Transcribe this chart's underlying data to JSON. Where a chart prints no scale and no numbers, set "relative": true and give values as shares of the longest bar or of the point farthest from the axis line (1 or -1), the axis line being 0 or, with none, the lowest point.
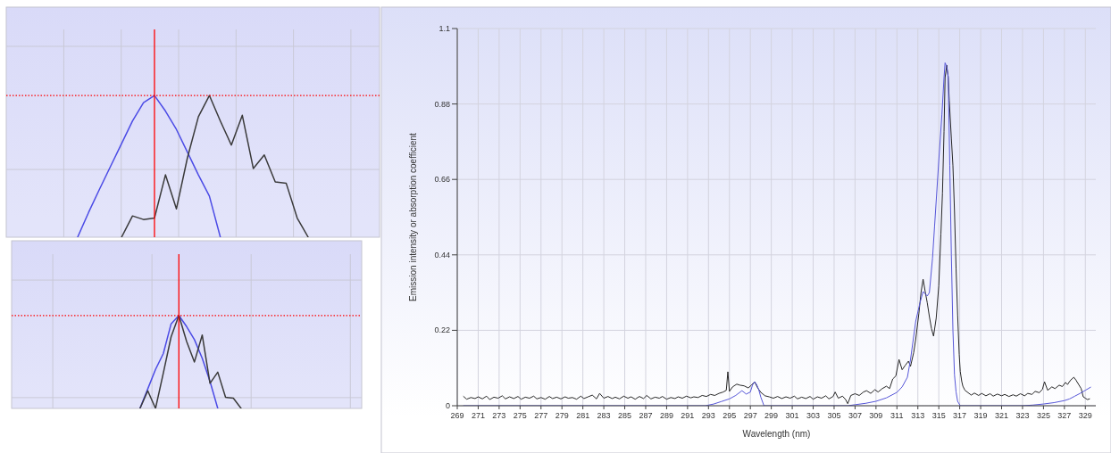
{
  "chart_data": [
    {
      "type": "line",
      "relative": true,
      "grid": true,
      "categories": [
        null,
        null,
        null,
        null,
        null,
        null,
        null,
        null,
        null,
        null,
        null,
        null,
        null,
        null,
        null,
        null,
        null,
        null,
        null,
        null,
        null,
        null,
        null,
        null,
        null,
        null,
        null,
        null,
        null,
        null,
        null,
        null,
        null,
        null
      ],
      "series": [
        {
          "color": "#4b4be6",
          "values": [
            null,
            null,
            null,
            null,
            null,
            null,
            0,
            0.175,
            0.34,
            0.5,
            0.66,
            0.82,
            0.95,
            1,
            0.89,
            0.76,
            0.6,
            0.44,
            0.29,
            0,
            null,
            null,
            null,
            null,
            null,
            null,
            null,
            null,
            null,
            null,
            null,
            null,
            null,
            null
          ]
        },
        {
          "color": "#3a3a3a",
          "values": [
            null,
            null,
            null,
            null,
            null,
            null,
            null,
            null,
            null,
            null,
            0,
            0.15,
            0.125,
            0.135,
            0.44,
            0.2,
            0.56,
            0.85,
            1,
            0.82,
            0.65,
            0.86,
            0.485,
            0.58,
            0.39,
            0.38,
            0.135,
            0,
            null,
            null,
            null,
            null,
            null,
            null
          ]
        }
      ],
      "ref_lines": [
        {
          "axis": "y",
          "value": 1,
          "color": "#ff0000",
          "line_style": "dotted"
        }
      ]
    },
    {
      "type": "line",
      "relative": true,
      "grid": true,
      "categories": [
        null,
        null,
        null,
        null,
        null,
        null,
        null,
        null,
        null,
        null,
        null,
        null,
        null,
        null,
        null,
        null,
        null,
        null,
        null,
        null,
        null,
        null,
        null,
        null,
        null,
        null,
        null,
        null,
        null,
        null,
        null,
        null,
        null,
        null,
        null,
        null,
        null,
        null,
        null,
        null,
        null,
        null,
        null,
        null,
        null
      ],
      "series": [
        {
          "color": "#4b4be6",
          "values": [
            null,
            null,
            null,
            null,
            null,
            null,
            null,
            null,
            null,
            null,
            null,
            null,
            null,
            null,
            null,
            null,
            0,
            0.21,
            0.42,
            0.59,
            0.91,
            1,
            0.88,
            0.74,
            0.54,
            0.29,
            0,
            null,
            null,
            null,
            null,
            null,
            null,
            null,
            null,
            null,
            null,
            null,
            null,
            null,
            null,
            null,
            null,
            null,
            null
          ]
        },
        {
          "color": "#3a3a3a",
          "values": [
            null,
            null,
            null,
            null,
            null,
            null,
            null,
            null,
            null,
            null,
            null,
            null,
            null,
            null,
            null,
            null,
            0,
            0.19,
            0,
            0.38,
            0.77,
            1,
            0.72,
            0.5,
            0.79,
            0.27,
            0.39,
            0.12,
            0.11,
            0,
            null,
            null,
            null,
            null,
            null,
            null,
            null,
            null,
            null,
            null,
            null,
            null,
            null,
            null,
            null
          ]
        }
      ],
      "ref_lines": [
        {
          "axis": "y",
          "value": 1,
          "color": "#ff0000",
          "line_style": "dotted"
        }
      ]
    },
    {
      "type": "line",
      "xlabel": "Wavelength (nm)",
      "ylabel": "Emission intensity or absorption coefficient",
      "xlim": [
        269,
        330
      ],
      "ylim": [
        0,
        1.1
      ],
      "xticks": [
        269,
        271,
        273,
        275,
        277,
        279,
        281,
        283,
        285,
        287,
        289,
        291,
        293,
        295,
        297,
        299,
        301,
        303,
        305,
        307,
        309,
        311,
        313,
        315,
        317,
        319,
        321,
        323,
        325,
        327,
        329
      ],
      "yticks": [
        0,
        0.22,
        0.44,
        0.66,
        0.88,
        1.1
      ],
      "grid": true,
      "series": [
        {
          "color": "#262626",
          "x": [
            269.6,
            269.9,
            270.3,
            270.7,
            271.0,
            271.4,
            271.8,
            272.1,
            272.5,
            272.9,
            273.3,
            273.6,
            274.0,
            274.4,
            274.8,
            275.1,
            275.5,
            275.9,
            276.3,
            276.6,
            277.0,
            277.4,
            277.8,
            278.1,
            278.5,
            278.9,
            279.3,
            279.6,
            280.0,
            280.4,
            280.8,
            281.1,
            281.5,
            281.9,
            282.3,
            282.6,
            283.0,
            283.4,
            283.8,
            284.1,
            284.5,
            284.9,
            285.3,
            285.6,
            286.0,
            286.4,
            286.8,
            287.1,
            287.5,
            287.9,
            288.3,
            288.6,
            289.0,
            289.4,
            289.8,
            290.1,
            290.5,
            290.9,
            291.3,
            291.6,
            292.0,
            292.4,
            292.8,
            293.2,
            293.6,
            294.0,
            294.4,
            294.7,
            294.85,
            295.0,
            295.3,
            295.7,
            296.0,
            296.4,
            296.8,
            297.1,
            297.4,
            297.7,
            298.0,
            298.4,
            298.8,
            299.2,
            299.6,
            300.0,
            300.4,
            300.8,
            301.2,
            301.5,
            301.9,
            302.3,
            302.7,
            303.0,
            303.4,
            303.8,
            304.2,
            304.5,
            304.9,
            305.1,
            305.4,
            305.8,
            306.1,
            306.3,
            306.6,
            307.0,
            307.4,
            307.8,
            308.1,
            308.5,
            308.9,
            309.2,
            309.6,
            310.0,
            310.3,
            310.6,
            310.9,
            311.2,
            311.5,
            311.8,
            312.1,
            312.3,
            312.6,
            312.8,
            313.1,
            313.3,
            313.5,
            313.7,
            313.9,
            314.1,
            314.3,
            314.5,
            314.75,
            315.0,
            315.2,
            315.35,
            315.5,
            315.6,
            315.76,
            315.9,
            316.0,
            316.2,
            316.35,
            316.5,
            316.65,
            316.8,
            316.95,
            317.05,
            317.2,
            317.3,
            317.5,
            317.8,
            318.1,
            318.4,
            318.8,
            319.1,
            319.5,
            319.9,
            320.2,
            320.6,
            321.0,
            321.3,
            321.7,
            322.1,
            322.4,
            322.8,
            323.2,
            323.5,
            323.9,
            324.2,
            324.6,
            324.9,
            325.1,
            325.4,
            325.8,
            326.1,
            326.5,
            326.8,
            327.1,
            327.3,
            327.6,
            327.9,
            328.1,
            328.4,
            328.6,
            328.8,
            329.0,
            329.2,
            329.4
          ],
          "values": [
            0.027,
            0.019,
            0.024,
            0.021,
            0.026,
            0.02,
            0.028,
            0.018,
            0.025,
            0.022,
            0.029,
            0.02,
            0.026,
            0.021,
            0.027,
            0.019,
            0.025,
            0.022,
            0.028,
            0.02,
            0.024,
            0.019,
            0.027,
            0.021,
            0.025,
            0.02,
            0.026,
            0.022,
            0.024,
            0.019,
            0.028,
            0.021,
            0.026,
            0.031,
            0.02,
            0.036,
            0.022,
            0.027,
            0.021,
            0.025,
            0.02,
            0.028,
            0.022,
            0.026,
            0.019,
            0.027,
            0.021,
            0.03,
            0.02,
            0.025,
            0.022,
            0.027,
            0.019,
            0.024,
            0.021,
            0.026,
            0.022,
            0.028,
            0.023,
            0.026,
            0.024,
            0.03,
            0.027,
            0.033,
            0.03,
            0.036,
            0.04,
            0.045,
            0.099,
            0.042,
            0.055,
            0.063,
            0.06,
            0.058,
            0.052,
            0.06,
            0.07,
            0.052,
            0.039,
            0.029,
            0.026,
            0.022,
            0.027,
            0.021,
            0.026,
            0.022,
            0.028,
            0.02,
            0.025,
            0.021,
            0.027,
            0.019,
            0.026,
            0.022,
            0.029,
            0.02,
            0.027,
            0.04,
            0.022,
            0.028,
            0.018,
            0.006,
            0.03,
            0.035,
            0.03,
            0.04,
            0.044,
            0.036,
            0.047,
            0.04,
            0.05,
            0.057,
            0.05,
            0.078,
            0.087,
            0.135,
            0.105,
            0.118,
            0.13,
            0.115,
            0.155,
            0.195,
            0.27,
            0.33,
            0.369,
            0.333,
            0.3,
            0.26,
            0.225,
            0.203,
            0.255,
            0.35,
            0.5,
            0.62,
            0.8,
            0.957,
            0.993,
            0.957,
            0.89,
            0.78,
            0.7,
            0.567,
            0.4,
            0.265,
            0.15,
            0.1,
            0.07,
            0.057,
            0.045,
            0.038,
            0.031,
            0.037,
            0.03,
            0.036,
            0.029,
            0.035,
            0.028,
            0.034,
            0.029,
            0.033,
            0.027,
            0.032,
            0.028,
            0.035,
            0.029,
            0.036,
            0.033,
            0.042,
            0.038,
            0.048,
            0.07,
            0.045,
            0.055,
            0.05,
            0.06,
            0.056,
            0.068,
            0.062,
            0.075,
            0.083,
            0.075,
            0.06,
            0.05,
            0.026,
            0.022,
            0.018,
            0.02
          ]
        },
        {
          "color": "#5656d8",
          "x": [
            269.6,
            292.7,
            293.5,
            294.2,
            295.0,
            295.6,
            296.2,
            296.6,
            297.0,
            297.2,
            297.4,
            297.6,
            297.8,
            298.0,
            298.3,
            306.3,
            307.0,
            308.0,
            309.0,
            310.0,
            311.0,
            311.5,
            312.0,
            312.3,
            312.8,
            313.2,
            313.5,
            313.9,
            314.1,
            314.4,
            314.6,
            315.0,
            315.3,
            315.5,
            315.6,
            315.75,
            315.9,
            316.05,
            316.2,
            316.35,
            316.5,
            316.65,
            316.8,
            317.05,
            323.0,
            324.0,
            325.0,
            326.0,
            327.0,
            327.5,
            328.0,
            328.5,
            329.0,
            329.5
          ],
          "values": [
            0,
            0,
            0.005,
            0.012,
            0.02,
            0.03,
            0.044,
            0.034,
            0.04,
            0.06,
            0.07,
            0.062,
            0.047,
            0.025,
            0,
            0,
            0.003,
            0.007,
            0.013,
            0.023,
            0.039,
            0.055,
            0.083,
            0.135,
            0.247,
            0.3,
            0.333,
            0.32,
            0.33,
            0.43,
            0.525,
            0.715,
            0.85,
            0.957,
            1.0,
            0.99,
            0.96,
            0.7,
            0.44,
            0.22,
            0.09,
            0.04,
            0.013,
            0,
            0,
            0.002,
            0.005,
            0.009,
            0.015,
            0.02,
            0.028,
            0.036,
            0.045,
            0.054
          ]
        }
      ]
    }
  ]
}
